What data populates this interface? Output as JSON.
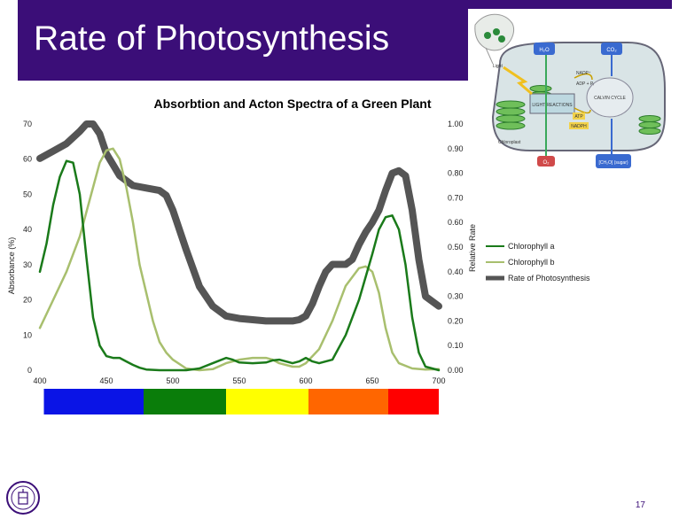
{
  "slide": {
    "title": "Rate of Photosynthesis",
    "page_number": "17"
  },
  "colors": {
    "title_bar": "#3b0e78",
    "chlorophyll_a": "#1a7a1a",
    "chlorophyll_b": "#a8bf6e",
    "rate": "#555555",
    "spectrum": [
      "#0a14e6",
      "#0a7d0a",
      "#ffff00",
      "#ff6600",
      "#ff0000"
    ]
  },
  "icons": {
    "logo": "university-seal-icon",
    "diagram": "chloroplast-diagram"
  },
  "diagram": {
    "labels": [
      "H₂O",
      "CO₂",
      "Light",
      "LIGHT REACTIONS",
      "CALVIN CYCLE",
      "NADP⁺",
      "ADP + Pᵢ",
      "ATP",
      "NADPH",
      "Chloroplast",
      "O₂",
      "[CH₂O] (sugar)"
    ]
  },
  "chart_data": {
    "type": "line",
    "title": "Absorbtion and Acton Spectra of a Green Plant",
    "xlabel": "",
    "ylabel": "Absorbance (%)",
    "y2label": "Relative Rate",
    "xlim": [
      400,
      700
    ],
    "ylim": [
      0,
      70
    ],
    "y2lim": [
      0.0,
      1.0
    ],
    "x_ticks": [
      400,
      450,
      500,
      550,
      600,
      650,
      700
    ],
    "y_ticks": [
      0,
      10,
      20,
      30,
      40,
      50,
      60,
      70
    ],
    "y2_ticks": [
      "0.00",
      "0.10",
      "0.20",
      "0.30",
      "0.40",
      "0.50",
      "0.60",
      "0.70",
      "0.80",
      "0.90",
      "1.00"
    ],
    "grid": false,
    "legend_position": "right",
    "spectrum_bands": [
      {
        "from": 403,
        "to": 478,
        "color": "#0a14e6"
      },
      {
        "from": 478,
        "to": 540,
        "color": "#0a7d0a"
      },
      {
        "from": 540,
        "to": 602,
        "color": "#ffff00"
      },
      {
        "from": 602,
        "to": 662,
        "color": "#ff6600"
      },
      {
        "from": 662,
        "to": 700,
        "color": "#ff0000"
      }
    ],
    "series": [
      {
        "name": "Chlorophyll a",
        "axis": "left",
        "color": "#1a7a1a",
        "width": 2.5,
        "points": [
          [
            400,
            28
          ],
          [
            405,
            36
          ],
          [
            410,
            47
          ],
          [
            415,
            55
          ],
          [
            420,
            59.5
          ],
          [
            425,
            59
          ],
          [
            430,
            50
          ],
          [
            435,
            32
          ],
          [
            440,
            15
          ],
          [
            445,
            7
          ],
          [
            450,
            4
          ],
          [
            455,
            3.5
          ],
          [
            460,
            3.5
          ],
          [
            465,
            2.5
          ],
          [
            470,
            1.5
          ],
          [
            475,
            0.7
          ],
          [
            480,
            0.2
          ],
          [
            490,
            0
          ],
          [
            500,
            0
          ],
          [
            510,
            0
          ],
          [
            520,
            0.5
          ],
          [
            530,
            2
          ],
          [
            540,
            3.5
          ],
          [
            545,
            3
          ],
          [
            550,
            2.2
          ],
          [
            560,
            2
          ],
          [
            570,
            2.2
          ],
          [
            575,
            2.8
          ],
          [
            580,
            3
          ],
          [
            590,
            2
          ],
          [
            595,
            2.5
          ],
          [
            600,
            3.5
          ],
          [
            605,
            2.5
          ],
          [
            610,
            2
          ],
          [
            620,
            3
          ],
          [
            630,
            10
          ],
          [
            640,
            20
          ],
          [
            650,
            33
          ],
          [
            655,
            40
          ],
          [
            660,
            43.5
          ],
          [
            665,
            44
          ],
          [
            670,
            40
          ],
          [
            675,
            30
          ],
          [
            680,
            15
          ],
          [
            685,
            5
          ],
          [
            690,
            1
          ],
          [
            700,
            0
          ]
        ]
      },
      {
        "name": "Chlorophyll b",
        "axis": "left",
        "color": "#a8bf6e",
        "width": 2.5,
        "points": [
          [
            400,
            12
          ],
          [
            405,
            16
          ],
          [
            410,
            20
          ],
          [
            420,
            28
          ],
          [
            430,
            38
          ],
          [
            440,
            52
          ],
          [
            445,
            59
          ],
          [
            450,
            62.5
          ],
          [
            455,
            63
          ],
          [
            460,
            60
          ],
          [
            465,
            52
          ],
          [
            470,
            42
          ],
          [
            475,
            30
          ],
          [
            480,
            22
          ],
          [
            485,
            14
          ],
          [
            490,
            8
          ],
          [
            495,
            5
          ],
          [
            500,
            3
          ],
          [
            510,
            0.5
          ],
          [
            520,
            0
          ],
          [
            530,
            0.3
          ],
          [
            540,
            2
          ],
          [
            550,
            3
          ],
          [
            560,
            3.5
          ],
          [
            570,
            3.5
          ],
          [
            575,
            3
          ],
          [
            580,
            2
          ],
          [
            590,
            1
          ],
          [
            595,
            1
          ],
          [
            600,
            2
          ],
          [
            610,
            6
          ],
          [
            620,
            14
          ],
          [
            630,
            24
          ],
          [
            640,
            29
          ],
          [
            645,
            29.5
          ],
          [
            650,
            28
          ],
          [
            655,
            22
          ],
          [
            660,
            12
          ],
          [
            665,
            5
          ],
          [
            670,
            2
          ],
          [
            680,
            0.5
          ],
          [
            690,
            0.2
          ],
          [
            700,
            0.3
          ]
        ]
      },
      {
        "name": "Rate of Photosynthesis",
        "axis": "right",
        "color": "#555555",
        "width": 8,
        "points": [
          [
            400,
            0.86
          ],
          [
            410,
            0.89
          ],
          [
            420,
            0.92
          ],
          [
            430,
            0.97
          ],
          [
            435,
            1.0
          ],
          [
            440,
            1.0
          ],
          [
            445,
            0.96
          ],
          [
            450,
            0.88
          ],
          [
            460,
            0.79
          ],
          [
            470,
            0.75
          ],
          [
            480,
            0.74
          ],
          [
            490,
            0.73
          ],
          [
            495,
            0.71
          ],
          [
            500,
            0.65
          ],
          [
            510,
            0.49
          ],
          [
            520,
            0.34
          ],
          [
            530,
            0.26
          ],
          [
            540,
            0.22
          ],
          [
            550,
            0.21
          ],
          [
            560,
            0.205
          ],
          [
            570,
            0.2
          ],
          [
            580,
            0.2
          ],
          [
            590,
            0.2
          ],
          [
            595,
            0.205
          ],
          [
            600,
            0.22
          ],
          [
            605,
            0.27
          ],
          [
            610,
            0.34
          ],
          [
            615,
            0.4
          ],
          [
            620,
            0.43
          ],
          [
            625,
            0.43
          ],
          [
            630,
            0.43
          ],
          [
            635,
            0.45
          ],
          [
            640,
            0.51
          ],
          [
            645,
            0.56
          ],
          [
            650,
            0.6
          ],
          [
            655,
            0.65
          ],
          [
            660,
            0.73
          ],
          [
            665,
            0.8
          ],
          [
            670,
            0.81
          ],
          [
            675,
            0.79
          ],
          [
            680,
            0.65
          ],
          [
            685,
            0.45
          ],
          [
            690,
            0.3
          ],
          [
            700,
            0.26
          ]
        ]
      }
    ]
  }
}
